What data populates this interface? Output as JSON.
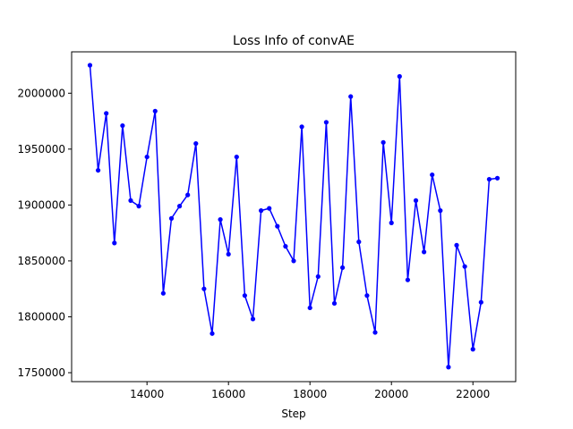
{
  "chart_data": {
    "type": "line",
    "title": "Loss Info of convAE",
    "xlabel": "Step",
    "ylabel": "",
    "xlim": [
      12150,
      23050
    ],
    "ylim": [
      1742000,
      2037000
    ],
    "xticks": [
      14000,
      16000,
      18000,
      20000,
      22000
    ],
    "yticks": [
      1750000,
      1800000,
      1850000,
      1900000,
      1950000,
      2000000
    ],
    "grid": false,
    "line_color": "#0000ff",
    "marker": "dot",
    "series": [
      {
        "x": [
          12600,
          12800,
          13000,
          13200,
          13400,
          13600,
          13800,
          14000,
          14200,
          14400,
          14600,
          14800,
          15000,
          15200,
          15400,
          15600,
          15800,
          16000,
          16200,
          16400,
          16600,
          16800,
          17000,
          17200,
          17400,
          17600,
          17800,
          18000,
          18200,
          18400,
          18600,
          18800,
          19000,
          19200,
          19400,
          19600,
          19800,
          20000,
          20200,
          20400,
          20600,
          20800,
          21000,
          21200,
          21400,
          21600,
          21800,
          22000,
          22200,
          22400,
          22600
        ],
        "y": [
          2025000,
          1931000,
          1982000,
          1866000,
          1971000,
          1904000,
          1899000,
          1943000,
          1984000,
          1821000,
          1888000,
          1899000,
          1909000,
          1955000,
          1825000,
          1785000,
          1887000,
          1856000,
          1943000,
          1819000,
          1798000,
          1895000,
          1897000,
          1881000,
          1863000,
          1850000,
          1970000,
          1808000,
          1836000,
          1974000,
          1812000,
          1844000,
          1997000,
          1867000,
          1819000,
          1786000,
          1956000,
          1884000,
          2015000,
          1833000,
          1904000,
          1858000,
          1927000,
          1895000,
          1755000,
          1864000,
          1845000,
          1771000,
          1813000,
          1923000,
          1924000
        ]
      }
    ]
  }
}
